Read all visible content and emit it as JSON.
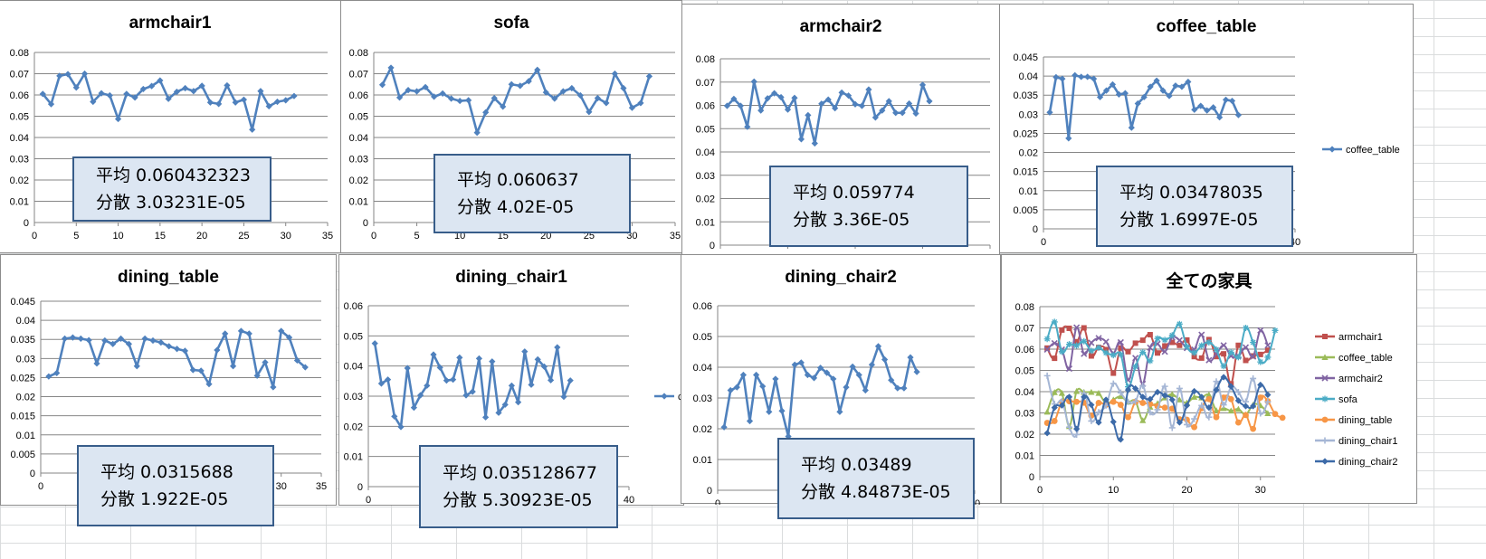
{
  "chart_data": [
    {
      "id": "armchair1",
      "type": "line",
      "title": "armchair1",
      "xlim": [
        0,
        35
      ],
      "xticks": [
        0,
        5,
        10,
        15,
        20,
        25,
        30,
        35
      ],
      "ylim": [
        0,
        0.08
      ],
      "yticks": [
        0,
        0.01,
        0.02,
        0.03,
        0.04,
        0.05,
        0.06,
        0.07,
        0.08
      ],
      "series": [
        {
          "color": "#4f81bd",
          "values": [
            0.0605,
            0.0557,
            0.069,
            0.0698,
            0.0635,
            0.07,
            0.0568,
            0.0608,
            0.0598,
            0.0487,
            0.0605,
            0.0588,
            0.0628,
            0.0642,
            0.0668,
            0.0582,
            0.0615,
            0.0632,
            0.0618,
            0.0643,
            0.0565,
            0.0558,
            0.0645,
            0.0565,
            0.0578,
            0.0437,
            0.0618,
            0.0547,
            0.0568,
            0.0575,
            0.0595
          ]
        }
      ],
      "stats": {
        "mean": "平均 0.060432323",
        "variance": "分散 3.03231E-05"
      }
    },
    {
      "id": "sofa",
      "type": "line",
      "title": "sofa",
      "xlim": [
        0,
        35
      ],
      "xticks": [
        0,
        5,
        10,
        15,
        20,
        25,
        30,
        35
      ],
      "ylim": [
        0,
        0.08
      ],
      "yticks": [
        0,
        0.01,
        0.02,
        0.03,
        0.04,
        0.05,
        0.06,
        0.07,
        0.08
      ],
      "series": [
        {
          "color": "#4f81bd",
          "values": [
            0.0648,
            0.0728,
            0.0588,
            0.0623,
            0.0617,
            0.0637,
            0.0592,
            0.0607,
            0.0583,
            0.0572,
            0.0575,
            0.0423,
            0.0518,
            0.0585,
            0.0545,
            0.065,
            0.0643,
            0.0665,
            0.0718,
            0.0612,
            0.0583,
            0.0617,
            0.0632,
            0.0598,
            0.052,
            0.0585,
            0.0562,
            0.07,
            0.0632,
            0.054,
            0.0562,
            0.0688
          ]
        }
      ],
      "stats": {
        "mean": "平均 0.060637",
        "variance": "分散 4.02E-05"
      }
    },
    {
      "id": "armchair2",
      "type": "line",
      "title": "armchair2",
      "xlim": [
        0,
        40
      ],
      "xticks": [
        0,
        10,
        20,
        30,
        40
      ],
      "ylim": [
        0,
        0.08
      ],
      "yticks": [
        0,
        0.01,
        0.02,
        0.03,
        0.04,
        0.05,
        0.06,
        0.07,
        0.08
      ],
      "series": [
        {
          "color": "#4f81bd",
          "values": [
            0.0598,
            0.0628,
            0.0598,
            0.0508,
            0.0702,
            0.0578,
            0.063,
            0.0652,
            0.0635,
            0.0582,
            0.0632,
            0.0455,
            0.0558,
            0.0437,
            0.0607,
            0.0625,
            0.0588,
            0.0655,
            0.0642,
            0.0605,
            0.0598,
            0.0668,
            0.0548,
            0.0578,
            0.0618,
            0.0568,
            0.0568,
            0.0608,
            0.0565,
            0.0688,
            0.0618
          ]
        }
      ],
      "stats": {
        "mean": "平均 0.059774",
        "variance": "分散 3.36E-05"
      }
    },
    {
      "id": "coffee_table",
      "type": "line",
      "title": "coffee_table",
      "xlim": [
        0,
        40
      ],
      "xticks": [
        0,
        10,
        20,
        30,
        40
      ],
      "ylim": [
        0,
        0.045
      ],
      "yticks": [
        0,
        0.005,
        0.01,
        0.015,
        0.02,
        0.025,
        0.03,
        0.035,
        0.04,
        0.045
      ],
      "legend": "coffee_table",
      "series": [
        {
          "name": "coffee_table",
          "color": "#4f81bd",
          "values": [
            0.0305,
            0.0397,
            0.0393,
            0.0237,
            0.0402,
            0.0398,
            0.0398,
            0.0393,
            0.0345,
            0.0362,
            0.0378,
            0.0352,
            0.0355,
            0.0265,
            0.0328,
            0.0345,
            0.0372,
            0.0388,
            0.0362,
            0.0348,
            0.0375,
            0.0372,
            0.0385,
            0.0312,
            0.0322,
            0.031,
            0.0318,
            0.0292,
            0.0338,
            0.0335,
            0.0298
          ]
        }
      ],
      "stats": {
        "mean": "平均 0.03478035",
        "variance": "分散 1.6997E-05"
      }
    },
    {
      "id": "dining_table",
      "type": "line",
      "title": "dining_table",
      "xlim": [
        0,
        35
      ],
      "xticks": [
        0,
        5,
        10,
        15,
        20,
        25,
        30,
        35
      ],
      "ylim": [
        0,
        0.045
      ],
      "yticks": [
        0,
        0.005,
        0.01,
        0.015,
        0.02,
        0.025,
        0.03,
        0.035,
        0.04,
        0.045
      ],
      "series": [
        {
          "color": "#4f81bd",
          "values": [
            0.0253,
            0.0262,
            0.0352,
            0.0355,
            0.0352,
            0.0348,
            0.0287,
            0.0347,
            0.0338,
            0.0352,
            0.0338,
            0.028,
            0.0352,
            0.0347,
            0.0342,
            0.0332,
            0.0325,
            0.032,
            0.027,
            0.0268,
            0.0233,
            0.0322,
            0.0365,
            0.028,
            0.0372,
            0.0365,
            0.0255,
            0.029,
            0.0225,
            0.0372,
            0.0355,
            0.0295,
            0.0277
          ]
        }
      ],
      "stats": {
        "mean": "平均 0.0315688",
        "variance": "分散 1.922E-05"
      }
    },
    {
      "id": "dining_chair1",
      "type": "line",
      "title": "dining_chair1",
      "xlim": [
        0,
        40
      ],
      "xticks": [
        0,
        10,
        20,
        30,
        40
      ],
      "ylim": [
        0,
        0.06
      ],
      "yticks": [
        0,
        0.01,
        0.02,
        0.03,
        0.04,
        0.05,
        0.06
      ],
      "series": [
        {
          "color": "#4f81bd",
          "values": [
            0.0475,
            0.0342,
            0.0355,
            0.0233,
            0.0198,
            0.0393,
            0.0262,
            0.0303,
            0.0335,
            0.0438,
            0.0395,
            0.0352,
            0.0355,
            0.0428,
            0.0303,
            0.0315,
            0.0425,
            0.023,
            0.0415,
            0.0245,
            0.0272,
            0.0335,
            0.028,
            0.0448,
            0.0338,
            0.0422,
            0.0398,
            0.0353,
            0.0462,
            0.0298,
            0.0352
          ]
        }
      ],
      "stats": {
        "mean": "平均 0.035128677",
        "variance": "分散 5.30923E-05"
      }
    },
    {
      "id": "dining_chair2",
      "type": "line",
      "title": "dining_chair2",
      "xlim": [
        0,
        40
      ],
      "xticks": [
        0,
        10,
        20,
        30,
        40
      ],
      "ylim": [
        0,
        0.06
      ],
      "yticks": [
        0,
        0.01,
        0.02,
        0.03,
        0.04,
        0.05,
        0.06
      ],
      "series": [
        {
          "color": "#4f81bd",
          "values": [
            0.0205,
            0.0325,
            0.0335,
            0.0375,
            0.0225,
            0.0375,
            0.0338,
            0.0255,
            0.0362,
            0.0258,
            0.0175,
            0.0408,
            0.0415,
            0.0375,
            0.0365,
            0.0398,
            0.0382,
            0.0362,
            0.0255,
            0.0335,
            0.0402,
            0.0375,
            0.0325,
            0.0408,
            0.0468,
            0.0425,
            0.0358,
            0.0332,
            0.0332,
            0.0432,
            0.0385
          ]
        }
      ],
      "stats": {
        "mean": "平均 0.03489",
        "variance": "分散 4.84873E-05"
      }
    },
    {
      "id": "all_furniture",
      "type": "line",
      "title": "全ての家具",
      "xlim": [
        0,
        32
      ],
      "xticks": [
        0,
        10,
        20,
        30
      ],
      "ylim": [
        0,
        0.08
      ],
      "yticks": [
        0,
        0.01,
        0.02,
        0.03,
        0.04,
        0.05,
        0.06,
        0.07,
        0.08
      ],
      "smooth": true,
      "series_refs": [
        {
          "name": "armchair1",
          "ref": "armchair1",
          "color": "#c0504d",
          "marker": "square"
        },
        {
          "name": "coffee_table",
          "ref": "coffee_table",
          "color": "#9bbb59",
          "marker": "triangle"
        },
        {
          "name": "armchair2",
          "ref": "armchair2",
          "color": "#8064a2",
          "marker": "x"
        },
        {
          "name": "sofa",
          "ref": "sofa",
          "color": "#4bacc6",
          "marker": "star"
        },
        {
          "name": "dining_table",
          "ref": "dining_table",
          "color": "#f79646",
          "marker": "circle"
        },
        {
          "name": "dining_chair1",
          "ref": "dining_chair1",
          "color": "#a5b6d5",
          "marker": "plus"
        },
        {
          "name": "dining_chair2",
          "ref": "dining_chair2",
          "color": "#3c6aa8",
          "marker": "diamond"
        }
      ]
    }
  ],
  "stray_legend_label": "c"
}
